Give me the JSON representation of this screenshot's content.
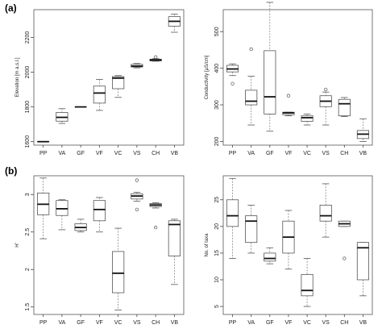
{
  "figure": {
    "panel_labels": [
      "(a)",
      "(b)"
    ]
  },
  "chart_data": [
    {
      "type": "box",
      "panel": "(a)",
      "ylabel": "Elevation [m a.s.l.]",
      "xlabel": "",
      "categories": [
        "PP",
        "VA",
        "GF",
        "VF",
        "VC",
        "VS",
        "CH",
        "VB"
      ],
      "ylim": [
        1580,
        2360
      ],
      "yticks": [
        1600,
        1800,
        2000,
        2200
      ],
      "show_x_tick_labels": true,
      "boxes": [
        {
          "whislo": 1600,
          "q1": 1600,
          "med": 1600,
          "q3": 1600,
          "whishi": 1600,
          "fliers": []
        },
        {
          "whislo": 1705,
          "q1": 1718,
          "med": 1740,
          "q3": 1768,
          "whishi": 1790,
          "fliers": []
        },
        {
          "whislo": 1800,
          "q1": 1800,
          "med": 1800,
          "q3": 1800,
          "whishi": 1800,
          "fliers": []
        },
        {
          "whislo": 1780,
          "q1": 1822,
          "med": 1880,
          "q3": 1920,
          "whishi": 1958,
          "fliers": []
        },
        {
          "whislo": 1855,
          "q1": 1905,
          "med": 1966,
          "q3": 1975,
          "whishi": 1980,
          "fliers": []
        },
        {
          "whislo": 2025,
          "q1": 2030,
          "med": 2035,
          "q3": 2045,
          "whishi": 2050,
          "fliers": []
        },
        {
          "whislo": 2063,
          "q1": 2065,
          "med": 2070,
          "q3": 2075,
          "whishi": 2078,
          "fliers": [
            2087
          ]
        },
        {
          "whislo": 2230,
          "q1": 2265,
          "med": 2293,
          "q3": 2320,
          "whishi": 2335,
          "fliers": []
        }
      ]
    },
    {
      "type": "box",
      "panel": "(a)",
      "ylabel": "Conductivity [µS/cm]",
      "xlabel": "",
      "categories": [
        "PP",
        "VA",
        "GF",
        "VF",
        "VC",
        "VS",
        "CH",
        "VB"
      ],
      "ylim": [
        190,
        560
      ],
      "yticks": [
        200,
        300,
        400,
        500
      ],
      "show_x_tick_labels": true,
      "boxes": [
        {
          "whislo": 380,
          "q1": 390,
          "med": 398,
          "q3": 408,
          "whishi": 412,
          "fliers": [
            358
          ]
        },
        {
          "whislo": 245,
          "q1": 300,
          "med": 310,
          "q3": 340,
          "whishi": 378,
          "fliers": [
            452
          ]
        },
        {
          "whislo": 228,
          "q1": 275,
          "med": 322,
          "q3": 448,
          "whishi": 580,
          "fliers": []
        },
        {
          "whislo": 270,
          "q1": 273,
          "med": 278,
          "q3": 280,
          "whishi": 280,
          "fliers": [
            325
          ]
        },
        {
          "whislo": 245,
          "q1": 255,
          "med": 265,
          "q3": 270,
          "whishi": 275,
          "fliers": []
        },
        {
          "whislo": 245,
          "q1": 295,
          "med": 310,
          "q3": 325,
          "whishi": 335,
          "fliers": [
            342
          ]
        },
        {
          "whislo": 268,
          "q1": 270,
          "med": 303,
          "q3": 315,
          "whishi": 320,
          "fliers": []
        },
        {
          "whislo": 200,
          "q1": 208,
          "med": 220,
          "q3": 230,
          "whishi": 262,
          "fliers": []
        }
      ]
    },
    {
      "type": "box",
      "panel": "(b)",
      "ylabel": "H'",
      "xlabel": "",
      "categories": [
        "PP",
        "VA",
        "GF",
        "VF",
        "VC",
        "VS",
        "CH",
        "VB"
      ],
      "ylim": [
        1.4,
        3.25
      ],
      "yticks": [
        1.5,
        2.0,
        2.5,
        3.0
      ],
      "show_x_tick_labels": true,
      "boxes": [
        {
          "whislo": 2.41,
          "q1": 2.73,
          "med": 2.87,
          "q3": 3.02,
          "whishi": 3.22,
          "fliers": []
        },
        {
          "whislo": 2.53,
          "q1": 2.72,
          "med": 2.81,
          "q3": 2.92,
          "whishi": 2.93,
          "fliers": []
        },
        {
          "whislo": 2.5,
          "q1": 2.52,
          "med": 2.56,
          "q3": 2.61,
          "whishi": 2.67,
          "fliers": []
        },
        {
          "whislo": 2.5,
          "q1": 2.65,
          "med": 2.8,
          "q3": 2.92,
          "whishi": 2.96,
          "fliers": []
        },
        {
          "whislo": 1.46,
          "q1": 1.69,
          "med": 1.95,
          "q3": 2.24,
          "whishi": 2.55,
          "fliers": []
        },
        {
          "whislo": 2.91,
          "q1": 2.94,
          "med": 2.98,
          "q3": 3.01,
          "whishi": 3.03,
          "fliers": [
            3.19,
            2.8
          ]
        },
        {
          "whislo": 2.82,
          "q1": 2.84,
          "med": 2.86,
          "q3": 2.88,
          "whishi": 2.89,
          "fliers": [
            2.56
          ]
        },
        {
          "whislo": 1.8,
          "q1": 2.18,
          "med": 2.6,
          "q3": 2.65,
          "whishi": 2.67,
          "fliers": []
        }
      ]
    },
    {
      "type": "box",
      "panel": "(b)",
      "ylabel": "No. of taxa",
      "xlabel": "",
      "categories": [
        "PP",
        "VA",
        "GF",
        "VF",
        "VC",
        "VS",
        "CH",
        "VB"
      ],
      "ylim": [
        3.5,
        29.5
      ],
      "yticks": [
        5,
        10,
        15,
        20,
        25
      ],
      "show_x_tick_labels": true,
      "boxes": [
        {
          "whislo": 14,
          "q1": 20,
          "med": 22,
          "q3": 25,
          "whishi": 29,
          "fliers": []
        },
        {
          "whislo": 15,
          "q1": 17,
          "med": 21,
          "q3": 22,
          "whishi": 24,
          "fliers": []
        },
        {
          "whislo": 13,
          "q1": 13.5,
          "med": 14,
          "q3": 15,
          "whishi": 16,
          "fliers": []
        },
        {
          "whislo": 12,
          "q1": 15,
          "med": 18,
          "q3": 21,
          "whishi": 23,
          "fliers": []
        },
        {
          "whislo": 5,
          "q1": 7,
          "med": 8,
          "q3": 11,
          "whishi": 14,
          "fliers": []
        },
        {
          "whislo": 18,
          "q1": 21,
          "med": 22,
          "q3": 24,
          "whishi": 28,
          "fliers": []
        },
        {
          "whislo": 20,
          "q1": 20,
          "med": 20.5,
          "q3": 21,
          "whishi": 21,
          "fliers": [
            14
          ]
        },
        {
          "whislo": 7,
          "q1": 10,
          "med": 16,
          "q3": 17,
          "whishi": 17,
          "fliers": []
        }
      ]
    }
  ]
}
